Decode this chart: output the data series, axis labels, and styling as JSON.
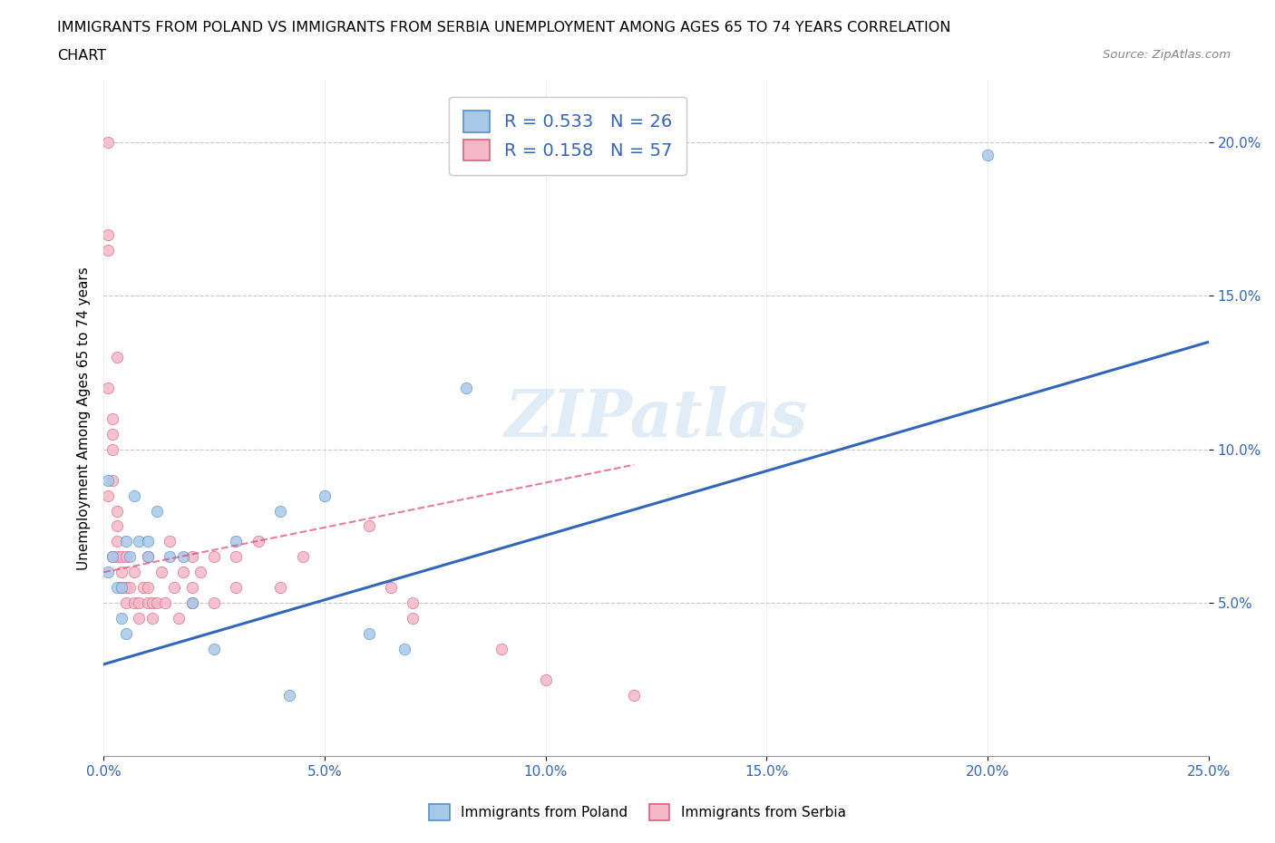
{
  "title_line1": "IMMIGRANTS FROM POLAND VS IMMIGRANTS FROM SERBIA UNEMPLOYMENT AMONG AGES 65 TO 74 YEARS CORRELATION",
  "title_line2": "CHART",
  "source": "Source: ZipAtlas.com",
  "ylabel": "Unemployment Among Ages 65 to 74 years",
  "xlim": [
    0.0,
    0.25
  ],
  "ylim": [
    0.0,
    0.22
  ],
  "xticks": [
    0.0,
    0.05,
    0.1,
    0.15,
    0.2,
    0.25
  ],
  "yticks": [
    0.05,
    0.1,
    0.15,
    0.2
  ],
  "ytick_labels": [
    "5.0%",
    "10.0%",
    "15.0%",
    "20.0%"
  ],
  "xtick_labels": [
    "0.0%",
    "5.0%",
    "10.0%",
    "15.0%",
    "20.0%",
    "25.0%"
  ],
  "legend_r_poland": "0.533",
  "legend_n_poland": "26",
  "legend_r_serbia": "0.158",
  "legend_n_serbia": "57",
  "poland_color": "#a8c8e8",
  "serbia_color": "#f4b8c8",
  "poland_edge_color": "#5590cc",
  "serbia_edge_color": "#e06080",
  "poland_line_color": "#3366bb",
  "serbia_line_color": "#dd4477",
  "watermark_color": "#c8ddf0",
  "poland_scatter_x": [
    0.001,
    0.001,
    0.002,
    0.003,
    0.004,
    0.004,
    0.005,
    0.005,
    0.006,
    0.007,
    0.008,
    0.01,
    0.01,
    0.012,
    0.015,
    0.018,
    0.02,
    0.025,
    0.03,
    0.04,
    0.042,
    0.05,
    0.06,
    0.068,
    0.082,
    0.2
  ],
  "poland_scatter_y": [
    0.09,
    0.06,
    0.065,
    0.055,
    0.045,
    0.055,
    0.04,
    0.07,
    0.065,
    0.085,
    0.07,
    0.07,
    0.065,
    0.08,
    0.065,
    0.065,
    0.05,
    0.035,
    0.07,
    0.08,
    0.02,
    0.085,
    0.04,
    0.035,
    0.12,
    0.196
  ],
  "serbia_scatter_x": [
    0.001,
    0.001,
    0.001,
    0.001,
    0.002,
    0.002,
    0.002,
    0.002,
    0.003,
    0.003,
    0.003,
    0.003,
    0.004,
    0.004,
    0.004,
    0.005,
    0.005,
    0.005,
    0.006,
    0.007,
    0.007,
    0.008,
    0.008,
    0.009,
    0.01,
    0.01,
    0.01,
    0.011,
    0.011,
    0.012,
    0.013,
    0.014,
    0.015,
    0.016,
    0.017,
    0.018,
    0.02,
    0.02,
    0.02,
    0.022,
    0.025,
    0.025,
    0.03,
    0.03,
    0.035,
    0.04,
    0.045,
    0.06,
    0.065,
    0.07,
    0.07,
    0.09,
    0.1,
    0.12,
    0.001,
    0.002,
    0.003
  ],
  "serbia_scatter_y": [
    0.2,
    0.17,
    0.165,
    0.12,
    0.11,
    0.105,
    0.09,
    0.065,
    0.08,
    0.075,
    0.07,
    0.065,
    0.065,
    0.06,
    0.055,
    0.065,
    0.055,
    0.05,
    0.055,
    0.06,
    0.05,
    0.05,
    0.045,
    0.055,
    0.065,
    0.055,
    0.05,
    0.05,
    0.045,
    0.05,
    0.06,
    0.05,
    0.07,
    0.055,
    0.045,
    0.06,
    0.065,
    0.055,
    0.05,
    0.06,
    0.065,
    0.05,
    0.065,
    0.055,
    0.07,
    0.055,
    0.065,
    0.075,
    0.055,
    0.05,
    0.045,
    0.035,
    0.025,
    0.02,
    0.085,
    0.1,
    0.13
  ],
  "poland_trendline_x0": 0.0,
  "poland_trendline_y0": 0.03,
  "poland_trendline_x1": 0.25,
  "poland_trendline_y1": 0.135,
  "serbia_trendline_x0": 0.0,
  "serbia_trendline_y0": 0.06,
  "serbia_trendline_x1": 0.12,
  "serbia_trendline_y1": 0.095
}
